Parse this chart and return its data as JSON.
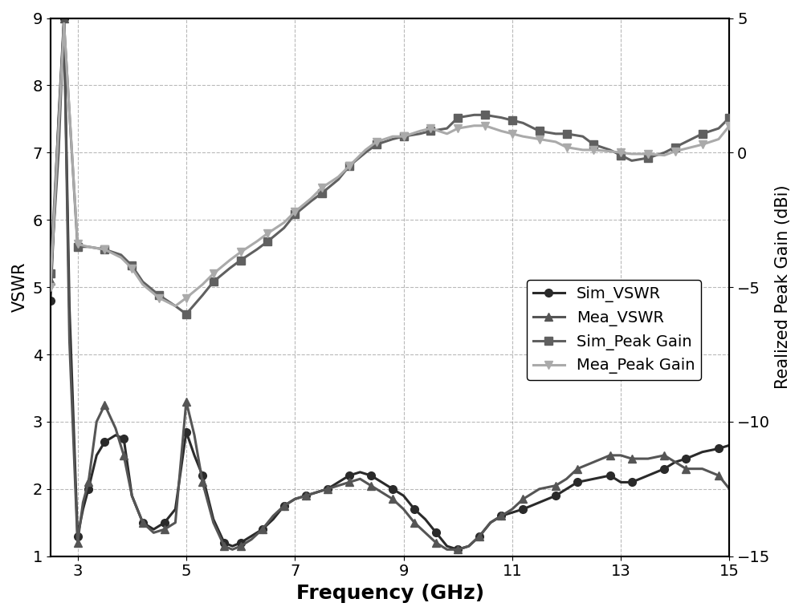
{
  "freq_sim_vswr": [
    2.5,
    2.65,
    2.75,
    2.85,
    3.0,
    3.1,
    3.2,
    3.35,
    3.5,
    3.7,
    3.85,
    4.0,
    4.2,
    4.4,
    4.6,
    4.8,
    5.0,
    5.15,
    5.3,
    5.5,
    5.7,
    5.85,
    6.0,
    6.2,
    6.4,
    6.6,
    6.8,
    7.0,
    7.2,
    7.4,
    7.6,
    7.8,
    8.0,
    8.2,
    8.4,
    8.6,
    8.8,
    9.0,
    9.2,
    9.4,
    9.6,
    9.8,
    10.0,
    10.2,
    10.4,
    10.6,
    10.8,
    11.0,
    11.2,
    11.5,
    11.8,
    12.0,
    12.2,
    12.5,
    12.8,
    13.0,
    13.2,
    13.5,
    13.8,
    14.0,
    14.2,
    14.5,
    14.8,
    15.0
  ],
  "vswr_sim": [
    4.8,
    7.5,
    9.0,
    4.7,
    1.3,
    1.7,
    2.0,
    2.5,
    2.7,
    2.8,
    2.75,
    1.9,
    1.5,
    1.4,
    1.5,
    1.7,
    2.85,
    2.5,
    2.2,
    1.55,
    1.2,
    1.15,
    1.2,
    1.3,
    1.4,
    1.55,
    1.75,
    1.85,
    1.9,
    1.95,
    2.0,
    2.1,
    2.2,
    2.25,
    2.2,
    2.1,
    2.0,
    1.9,
    1.7,
    1.55,
    1.35,
    1.15,
    1.1,
    1.15,
    1.3,
    1.5,
    1.6,
    1.65,
    1.7,
    1.8,
    1.9,
    2.0,
    2.1,
    2.15,
    2.2,
    2.1,
    2.1,
    2.2,
    2.3,
    2.4,
    2.45,
    2.55,
    2.6,
    2.65
  ],
  "freq_mea_vswr": [
    2.5,
    2.65,
    2.75,
    2.85,
    3.0,
    3.1,
    3.2,
    3.35,
    3.5,
    3.7,
    3.85,
    4.0,
    4.2,
    4.4,
    4.6,
    4.8,
    5.0,
    5.15,
    5.3,
    5.5,
    5.7,
    5.85,
    6.0,
    6.2,
    6.4,
    6.6,
    6.8,
    7.0,
    7.2,
    7.4,
    7.6,
    7.8,
    8.0,
    8.2,
    8.4,
    8.6,
    8.8,
    9.0,
    9.2,
    9.4,
    9.6,
    9.8,
    10.0,
    10.2,
    10.4,
    10.6,
    10.8,
    11.0,
    11.2,
    11.5,
    11.8,
    12.0,
    12.2,
    12.5,
    12.8,
    13.0,
    13.2,
    13.5,
    13.8,
    14.0,
    14.2,
    14.5,
    14.8,
    15.0
  ],
  "vswr_mea": [
    5.1,
    7.0,
    9.0,
    4.2,
    1.2,
    1.8,
    2.1,
    3.0,
    3.25,
    2.9,
    2.5,
    1.9,
    1.5,
    1.35,
    1.4,
    1.5,
    3.3,
    2.8,
    2.1,
    1.5,
    1.15,
    1.1,
    1.15,
    1.25,
    1.4,
    1.6,
    1.75,
    1.85,
    1.9,
    1.95,
    2.0,
    2.05,
    2.1,
    2.15,
    2.05,
    1.95,
    1.85,
    1.7,
    1.5,
    1.35,
    1.2,
    1.1,
    1.1,
    1.15,
    1.3,
    1.5,
    1.6,
    1.7,
    1.85,
    2.0,
    2.05,
    2.15,
    2.3,
    2.4,
    2.5,
    2.5,
    2.45,
    2.45,
    2.5,
    2.4,
    2.3,
    2.3,
    2.2,
    2.0
  ],
  "freq_sim_gain": [
    2.5,
    2.75,
    3.0,
    3.2,
    3.5,
    3.8,
    4.0,
    4.2,
    4.5,
    4.8,
    5.0,
    5.3,
    5.5,
    5.8,
    6.0,
    6.3,
    6.5,
    6.8,
    7.0,
    7.3,
    7.5,
    7.8,
    8.0,
    8.3,
    8.5,
    8.8,
    9.0,
    9.3,
    9.5,
    9.8,
    10.0,
    10.3,
    10.5,
    10.8,
    11.0,
    11.2,
    11.5,
    11.8,
    12.0,
    12.3,
    12.5,
    12.8,
    13.0,
    13.2,
    13.5,
    13.8,
    14.0,
    14.3,
    14.5,
    14.8,
    15.0
  ],
  "gain_sim": [
    -4.5,
    4.8,
    -3.5,
    -3.5,
    -3.6,
    -3.8,
    -4.2,
    -4.8,
    -5.3,
    -5.7,
    -6.0,
    -5.3,
    -4.8,
    -4.3,
    -4.0,
    -3.6,
    -3.3,
    -2.8,
    -2.3,
    -1.8,
    -1.5,
    -1.0,
    -0.5,
    0.0,
    0.3,
    0.5,
    0.6,
    0.7,
    0.8,
    0.9,
    1.3,
    1.4,
    1.4,
    1.3,
    1.2,
    1.1,
    0.8,
    0.7,
    0.7,
    0.6,
    0.3,
    0.1,
    -0.1,
    -0.3,
    -0.2,
    0.0,
    0.2,
    0.5,
    0.7,
    0.9,
    1.3
  ],
  "freq_mea_gain": [
    2.5,
    2.75,
    3.0,
    3.2,
    3.5,
    3.8,
    4.0,
    4.2,
    4.5,
    4.8,
    5.0,
    5.3,
    5.5,
    5.8,
    6.0,
    6.3,
    6.5,
    6.8,
    7.0,
    7.3,
    7.5,
    7.8,
    8.0,
    8.3,
    8.5,
    8.8,
    9.0,
    9.3,
    9.5,
    9.8,
    10.0,
    10.3,
    10.5,
    10.8,
    11.0,
    11.2,
    11.5,
    11.8,
    12.0,
    12.3,
    12.5,
    12.8,
    13.0,
    13.2,
    13.5,
    13.8,
    14.0,
    14.3,
    14.5,
    14.8,
    15.0
  ],
  "gain_mea": [
    -5.0,
    4.8,
    -3.4,
    -3.5,
    -3.6,
    -3.9,
    -4.3,
    -4.9,
    -5.4,
    -5.7,
    -5.4,
    -4.9,
    -4.5,
    -4.0,
    -3.7,
    -3.3,
    -3.0,
    -2.6,
    -2.2,
    -1.7,
    -1.3,
    -0.9,
    -0.5,
    0.1,
    0.4,
    0.6,
    0.6,
    0.8,
    0.9,
    0.7,
    0.9,
    1.0,
    1.0,
    0.8,
    0.7,
    0.6,
    0.5,
    0.4,
    0.2,
    0.1,
    0.1,
    0.05,
    0.0,
    -0.05,
    -0.05,
    -0.1,
    0.05,
    0.2,
    0.3,
    0.5,
    1.0
  ],
  "vswr_ylim": [
    1,
    9
  ],
  "vswr_yticks": [
    1,
    2,
    3,
    4,
    5,
    6,
    7,
    8,
    9
  ],
  "xlim": [
    2.5,
    15
  ],
  "xticks": [
    3,
    5,
    7,
    9,
    11,
    13,
    15
  ],
  "gain_ylim_min": -15,
  "gain_ylim_max": 5,
  "gain_yticks": [
    -15,
    -10,
    -5,
    0,
    5
  ],
  "color_sim_vswr": "#2a2a2a",
  "color_mea_vswr": "#555555",
  "color_sim_gain": "#606060",
  "color_mea_gain": "#aaaaaa",
  "xlabel": "Frequency (GHz)",
  "ylabel_left": "VSWR",
  "ylabel_right": "Realized Peak Gain (dBi)",
  "legend_labels": [
    "Sim_VSWR",
    "Mea_VSWR",
    "Sim_Peak Gain",
    "Mea_Peak Gain"
  ],
  "xlabel_fontsize": 18,
  "ylabel_fontsize": 15,
  "tick_fontsize": 14,
  "legend_fontsize": 14,
  "linewidth": 2.2,
  "markersize": 7
}
